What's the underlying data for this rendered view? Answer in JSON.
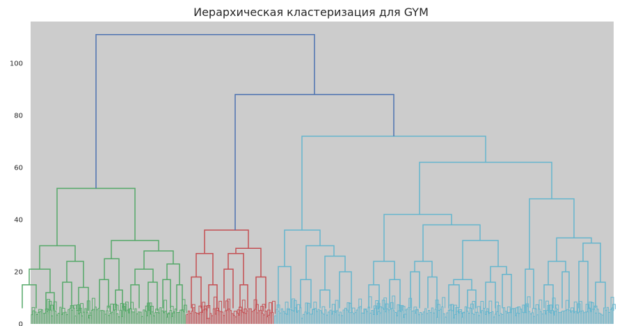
{
  "chart_data": {
    "type": "dendrogram",
    "title": "Иерархическая кластеризация для GYM",
    "xlabel": "",
    "ylabel": "",
    "ylim": [
      0,
      116
    ],
    "yticks": [
      0,
      20,
      40,
      60,
      80,
      100
    ],
    "grid": false,
    "background_color": "#cccccc",
    "colors": {
      "above_threshold": "#4c72b0",
      "cluster_green": "#55a868",
      "cluster_red": "#c44e52",
      "cluster_cyan": "#64b5cd"
    },
    "leaf_clusters": [
      {
        "color_key": "cluster_green",
        "leaf_count": 370
      },
      {
        "color_key": "cluster_red",
        "leaf_count": 210
      },
      {
        "color_key": "cluster_cyan",
        "leaf_count": 810
      }
    ],
    "merges": [
      {
        "left": [
          32,
          6
        ],
        "right": [
          52,
          6
        ],
        "height": 15,
        "color_key": "cluster_green"
      },
      {
        "left": [
          66,
          5
        ],
        "right": [
          78,
          5
        ],
        "height": 12,
        "color_key": "cluster_green"
      },
      {
        "left": [
          42,
          15
        ],
        "right": [
          72,
          12
        ],
        "height": 21,
        "color_key": "cluster_green"
      },
      {
        "left": [
          90,
          6
        ],
        "right": [
          103,
          6
        ],
        "height": 16,
        "color_key": "cluster_green"
      },
      {
        "left": [
          113,
          5
        ],
        "right": [
          127,
          5
        ],
        "height": 14,
        "color_key": "cluster_green"
      },
      {
        "left": [
          96,
          16
        ],
        "right": [
          120,
          14
        ],
        "height": 24,
        "color_key": "cluster_green"
      },
      {
        "left": [
          57,
          21
        ],
        "right": [
          108,
          24
        ],
        "height": 30,
        "color_key": "cluster_green"
      },
      {
        "left": [
          143,
          6
        ],
        "right": [
          156,
          6
        ],
        "height": 17,
        "color_key": "cluster_green"
      },
      {
        "left": [
          166,
          6
        ],
        "right": [
          176,
          6
        ],
        "height": 13,
        "color_key": "cluster_green"
      },
      {
        "left": [
          150,
          17
        ],
        "right": [
          171,
          13
        ],
        "height": 25,
        "color_key": "cluster_green"
      },
      {
        "left": [
          188,
          6
        ],
        "right": [
          200,
          6
        ],
        "height": 15,
        "color_key": "cluster_green"
      },
      {
        "left": [
          213,
          5
        ],
        "right": [
          226,
          5
        ],
        "height": 16,
        "color_key": "cluster_green"
      },
      {
        "left": [
          194,
          15
        ],
        "right": [
          220,
          16
        ],
        "height": 21,
        "color_key": "cluster_green"
      },
      {
        "left": [
          234,
          6
        ],
        "right": [
          245,
          6
        ],
        "height": 17,
        "color_key": "cluster_green"
      },
      {
        "left": [
          254,
          5
        ],
        "right": [
          262,
          5
        ],
        "height": 15,
        "color_key": "cluster_green"
      },
      {
        "left": [
          240,
          17
        ],
        "right": [
          258,
          15
        ],
        "height": 23,
        "color_key": "cluster_green"
      },
      {
        "left": [
          207,
          21
        ],
        "right": [
          249,
          23
        ],
        "height": 28,
        "color_key": "cluster_green"
      },
      {
        "left": [
          160,
          25
        ],
        "right": [
          228,
          28
        ],
        "height": 32,
        "color_key": "cluster_green"
      },
      {
        "left": [
          82,
          30
        ],
        "right": [
          194,
          32
        ],
        "height": 52,
        "color_key": "cluster_green"
      },
      {
        "left": [
          275,
          6
        ],
        "right": [
          289,
          6
        ],
        "height": 18,
        "color_key": "cluster_red"
      },
      {
        "left": [
          300,
          6
        ],
        "right": [
          312,
          6
        ],
        "height": 15,
        "color_key": "cluster_red"
      },
      {
        "left": [
          282,
          18
        ],
        "right": [
          306,
          15
        ],
        "height": 27,
        "color_key": "cluster_red"
      },
      {
        "left": [
          322,
          6
        ],
        "right": [
          335,
          6
        ],
        "height": 21,
        "color_key": "cluster_red"
      },
      {
        "left": [
          345,
          6
        ],
        "right": [
          356,
          6
        ],
        "height": 15,
        "color_key": "cluster_red"
      },
      {
        "left": [
          328,
          21
        ],
        "right": [
          350,
          15
        ],
        "height": 27,
        "color_key": "cluster_red"
      },
      {
        "left": [
          368,
          6
        ],
        "right": [
          382,
          6
        ],
        "height": 18,
        "color_key": "cluster_red"
      },
      {
        "left": [
          339,
          27
        ],
        "right": [
          375,
          18
        ],
        "height": 29,
        "color_key": "cluster_red"
      },
      {
        "left": [
          294,
          27
        ],
        "right": [
          357,
          29
        ],
        "height": 36,
        "color_key": "cluster_red"
      },
      {
        "left": [
          400,
          6
        ],
        "right": [
          418,
          6
        ],
        "height": 22,
        "color_key": "cluster_cyan"
      },
      {
        "left": [
          432,
          6
        ],
        "right": [
          447,
          6
        ],
        "height": 17,
        "color_key": "cluster_cyan"
      },
      {
        "left": [
          460,
          6
        ],
        "right": [
          474,
          6
        ],
        "height": 13,
        "color_key": "cluster_cyan"
      },
      {
        "left": [
          488,
          6
        ],
        "right": [
          505,
          6
        ],
        "height": 20,
        "color_key": "cluster_cyan"
      },
      {
        "left": [
          467,
          13
        ],
        "right": [
          496,
          20
        ],
        "height": 26,
        "color_key": "cluster_cyan"
      },
      {
        "left": [
          440,
          17
        ],
        "right": [
          480,
          26
        ],
        "height": 30,
        "color_key": "cluster_cyan"
      },
      {
        "left": [
          409,
          22
        ],
        "right": [
          460,
          30
        ],
        "height": 36,
        "color_key": "cluster_cyan"
      },
      {
        "left": [
          530,
          6
        ],
        "right": [
          545,
          6
        ],
        "height": 15,
        "color_key": "cluster_cyan"
      },
      {
        "left": [
          560,
          6
        ],
        "right": [
          575,
          6
        ],
        "height": 17,
        "color_key": "cluster_cyan"
      },
      {
        "left": [
          537,
          15
        ],
        "right": [
          567,
          17
        ],
        "height": 24,
        "color_key": "cluster_cyan"
      },
      {
        "left": [
          590,
          6
        ],
        "right": [
          603,
          6
        ],
        "height": 20,
        "color_key": "cluster_cyan"
      },
      {
        "left": [
          615,
          6
        ],
        "right": [
          628,
          6
        ],
        "height": 18,
        "color_key": "cluster_cyan"
      },
      {
        "left": [
          596,
          20
        ],
        "right": [
          621,
          18
        ],
        "height": 24,
        "color_key": "cluster_cyan"
      },
      {
        "left": [
          645,
          6
        ],
        "right": [
          660,
          6
        ],
        "height": 15,
        "color_key": "cluster_cyan"
      },
      {
        "left": [
          672,
          6
        ],
        "right": [
          684,
          6
        ],
        "height": 13,
        "color_key": "cluster_cyan"
      },
      {
        "left": [
          652,
          15
        ],
        "right": [
          678,
          13
        ],
        "height": 17,
        "color_key": "cluster_cyan"
      },
      {
        "left": [
          698,
          6
        ],
        "right": [
          712,
          6
        ],
        "height": 16,
        "color_key": "cluster_cyan"
      },
      {
        "left": [
          722,
          6
        ],
        "right": [
          735,
          6
        ],
        "height": 19,
        "color_key": "cluster_cyan"
      },
      {
        "left": [
          705,
          16
        ],
        "right": [
          728,
          19
        ],
        "height": 22,
        "color_key": "cluster_cyan"
      },
      {
        "left": [
          665,
          17
        ],
        "right": [
          716,
          22
        ],
        "height": 32,
        "color_key": "cluster_cyan"
      },
      {
        "left": [
          608,
          24
        ],
        "right": [
          690,
          32
        ],
        "height": 38,
        "color_key": "cluster_cyan"
      },
      {
        "left": [
          552,
          24
        ],
        "right": [
          649,
          38
        ],
        "height": 42,
        "color_key": "cluster_cyan"
      },
      {
        "left": [
          755,
          6
        ],
        "right": [
          767,
          6
        ],
        "height": 21,
        "color_key": "cluster_cyan"
      },
      {
        "left": [
          782,
          6
        ],
        "right": [
          795,
          6
        ],
        "height": 15,
        "color_key": "cluster_cyan"
      },
      {
        "left": [
          808,
          6
        ],
        "right": [
          818,
          6
        ],
        "height": 20,
        "color_key": "cluster_cyan"
      },
      {
        "left": [
          832,
          6
        ],
        "right": [
          845,
          6
        ],
        "height": 24,
        "color_key": "cluster_cyan"
      },
      {
        "left": [
          856,
          6
        ],
        "right": [
          870,
          6
        ],
        "height": 16,
        "color_key": "cluster_cyan"
      },
      {
        "left": [
          788,
          15
        ],
        "right": [
          813,
          20
        ],
        "height": 24,
        "color_key": "cluster_cyan"
      },
      {
        "left": [
          838,
          24
        ],
        "right": [
          863,
          16
        ],
        "height": 31,
        "color_key": "cluster_cyan"
      },
      {
        "left": [
          800,
          24
        ],
        "right": [
          850,
          31
        ],
        "height": 33,
        "color_key": "cluster_cyan"
      },
      {
        "left": [
          761,
          21
        ],
        "right": [
          825,
          33
        ],
        "height": 48,
        "color_key": "cluster_cyan"
      },
      {
        "left": [
          603,
          42
        ],
        "right": [
          793,
          48
        ],
        "height": 62,
        "color_key": "cluster_cyan"
      },
      {
        "left": [
          434,
          36
        ],
        "right": [
          698,
          62
        ],
        "height": 72,
        "color_key": "cluster_cyan"
      },
      {
        "left": [
          338,
          36
        ],
        "right": [
          566,
          72
        ],
        "height": 88,
        "color_key": "above_threshold"
      },
      {
        "left": [
          138,
          52
        ],
        "right": [
          452,
          88
        ],
        "height": 111,
        "color_key": "above_threshold"
      }
    ]
  }
}
